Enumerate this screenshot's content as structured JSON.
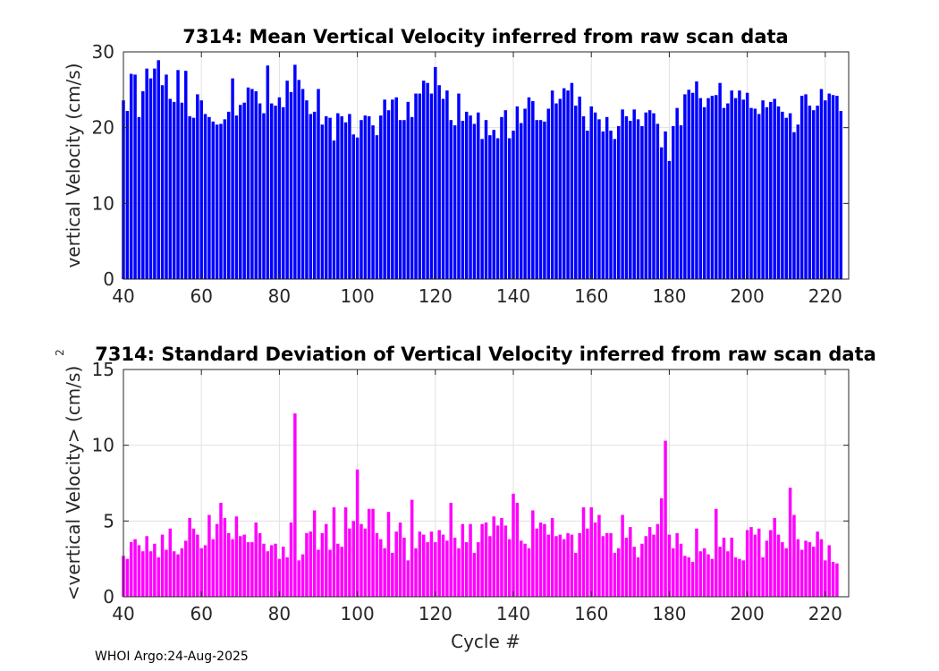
{
  "figure": {
    "footer": "WHOI Argo:24-Aug-2025"
  },
  "chart_data": [
    {
      "type": "bar",
      "title": "7314: Mean Vertical Velocity inferred from raw scan data",
      "xlabel": "",
      "ylabel": "vertical Velocity (cm/s)",
      "xlim": [
        40,
        226
      ],
      "ylim": [
        0,
        30
      ],
      "xticks": [
        "40",
        "60",
        "80",
        "100",
        "120",
        "140",
        "160",
        "180",
        "200",
        "220"
      ],
      "yticks": [
        "0",
        "10",
        "20",
        "30"
      ],
      "grid": true,
      "color": "#0000ff",
      "x_start": 40,
      "values": [
        23.6,
        22.2,
        27.1,
        27.0,
        21.4,
        24.8,
        27.8,
        26.5,
        27.8,
        28.9,
        25.6,
        27.0,
        23.8,
        23.4,
        27.6,
        23.3,
        27.5,
        21.5,
        21.3,
        24.4,
        23.6,
        21.8,
        21.4,
        20.8,
        20.4,
        20.5,
        21.1,
        22.1,
        26.5,
        21.6,
        23.0,
        23.3,
        25.3,
        25.1,
        24.8,
        23.2,
        21.9,
        28.2,
        23.2,
        22.9,
        24.0,
        22.7,
        26.2,
        24.7,
        28.3,
        26.3,
        25.1,
        23.6,
        21.8,
        22.1,
        25.1,
        20.4,
        21.5,
        21.3,
        18.3,
        21.9,
        21.5,
        20.7,
        21.8,
        19.1,
        18.7,
        21.0,
        21.6,
        21.5,
        20.3,
        19.0,
        21.6,
        23.7,
        22.3,
        23.7,
        24.0,
        21.0,
        21.0,
        23.4,
        21.4,
        24.5,
        24.5,
        26.2,
        25.9,
        24.5,
        28.0,
        25.6,
        23.8,
        24.9,
        21.0,
        20.3,
        24.5,
        20.9,
        22.1,
        21.6,
        20.5,
        22.0,
        18.5,
        21.0,
        19.0,
        19.7,
        18.6,
        21.4,
        22.3,
        18.6,
        19.6,
        22.8,
        20.6,
        22.5,
        24.0,
        23.5,
        21.0,
        21.0,
        20.8,
        22.5,
        24.9,
        23.2,
        23.8,
        25.2,
        24.9,
        25.9,
        22.9,
        24.1,
        21.5,
        19.6,
        22.8,
        22.0,
        21.1,
        19.5,
        21.4,
        19.6,
        18.5,
        20.2,
        22.4,
        21.5,
        20.9,
        22.4,
        21.1,
        20.2,
        22.0,
        22.3,
        21.9,
        20.5,
        17.4,
        19.5,
        15.6,
        20.2,
        22.6,
        20.3,
        24.4,
        25.0,
        24.6,
        26.1,
        23.9,
        22.7,
        23.9,
        24.2,
        24.3,
        25.9,
        22.6,
        23.2,
        24.9,
        23.9,
        24.9,
        23.7,
        24.6,
        22.6,
        22.5,
        21.8,
        23.6,
        22.7,
        23.4,
        23.8,
        22.8,
        22.1,
        21.3,
        21.9,
        19.4,
        20.4,
        24.2,
        24.4,
        22.9,
        22.3,
        22.9,
        25.1,
        23.6,
        24.5,
        24.3,
        24.2,
        22.2
      ]
    },
    {
      "type": "bar",
      "title": "7314: Standard Deviation of Vertical Velocity inferred from raw scan data",
      "xlabel": "Cycle #",
      "ylabel": "<vertical Velocity> (cm/s)",
      "ylabel_superscript": "2",
      "xlim": [
        40,
        226
      ],
      "ylim": [
        0,
        15
      ],
      "xticks": [
        "40",
        "60",
        "80",
        "100",
        "120",
        "140",
        "160",
        "180",
        "200",
        "220"
      ],
      "yticks": [
        "0",
        "5",
        "10",
        "15"
      ],
      "grid": true,
      "color": "#ff00ff",
      "x_start": 40,
      "values": [
        2.7,
        2.5,
        3.6,
        3.8,
        3.4,
        3.0,
        4.0,
        3.0,
        3.5,
        2.6,
        4.1,
        3.1,
        4.5,
        3.0,
        2.8,
        3.2,
        3.7,
        5.2,
        4.5,
        4.1,
        3.2,
        3.4,
        5.4,
        3.8,
        4.8,
        6.2,
        5.2,
        4.2,
        3.8,
        5.3,
        4.0,
        4.1,
        3.6,
        3.6,
        4.9,
        4.2,
        3.5,
        3.0,
        3.4,
        3.5,
        2.5,
        3.3,
        2.6,
        4.9,
        12.1,
        2.4,
        2.8,
        4.2,
        4.3,
        5.7,
        3.1,
        4.2,
        4.8,
        3.1,
        5.9,
        3.5,
        3.3,
        5.9,
        4.5,
        5.0,
        8.4,
        4.8,
        4.5,
        5.8,
        5.8,
        4.2,
        3.8,
        3.2,
        5.6,
        2.9,
        4.3,
        4.9,
        3.9,
        2.4,
        6.4,
        3.2,
        4.3,
        4.1,
        3.6,
        4.3,
        3.6,
        4.4,
        4.1,
        3.7,
        6.2,
        3.9,
        3.2,
        4.8,
        3.6,
        4.8,
        2.9,
        3.6,
        4.8,
        4.9,
        4.0,
        5.3,
        4.7,
        5.2,
        4.7,
        3.8,
        6.8,
        6.2,
        3.7,
        3.5,
        3.2,
        5.7,
        4.5,
        4.9,
        4.8,
        4.1,
        5.2,
        4.0,
        4.1,
        3.8,
        4.2,
        4.1,
        2.9,
        4.2,
        5.9,
        4.5,
        5.9,
        4.9,
        5.4,
        4.0,
        4.2,
        4.2,
        2.9,
        3.2,
        5.4,
        3.9,
        4.6,
        3.3,
        2.6,
        3.5,
        4.0,
        4.6,
        4.1,
        4.8,
        6.5,
        10.3,
        4.1,
        3.2,
        4.2,
        3.5,
        2.7,
        2.6,
        2.3,
        4.5,
        3.0,
        3.2,
        2.8,
        2.5,
        5.8,
        3.3,
        3.9,
        3.0,
        3.9,
        2.6,
        2.5,
        2.4,
        4.4,
        4.6,
        4.1,
        4.5,
        2.6,
        3.7,
        4.4,
        5.2,
        4.1,
        3.6,
        3.2,
        7.2,
        5.4,
        3.8,
        3.1,
        3.7,
        3.6,
        3.3,
        4.3,
        3.8,
        2.4,
        3.4,
        2.3,
        2.2
      ]
    }
  ]
}
